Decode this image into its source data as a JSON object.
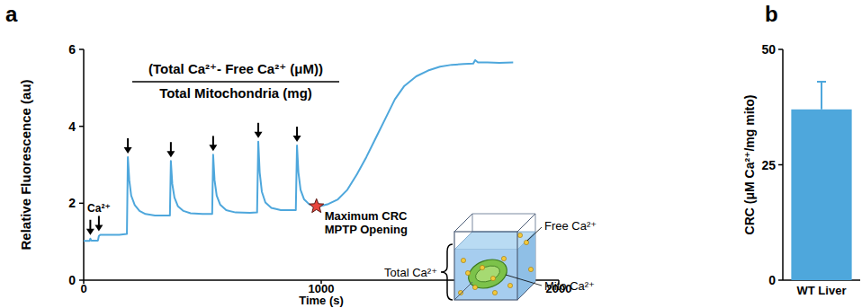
{
  "chart_data": [
    {
      "type": "line",
      "title": "a",
      "x": [
        0,
        25,
        28,
        32,
        60,
        64,
        70,
        100,
        150,
        182,
        186,
        192,
        200,
        215,
        235,
        260,
        300,
        363,
        367,
        373,
        382,
        397,
        420,
        450,
        500,
        541,
        545,
        551,
        560,
        575,
        600,
        640,
        700,
        730,
        735,
        741,
        750,
        765,
        790,
        830,
        893,
        898,
        904,
        913,
        928,
        950,
        980,
        1000,
        1030,
        1070,
        1110,
        1150,
        1190,
        1230,
        1270,
        1310,
        1350,
        1400,
        1450,
        1500,
        1550,
        1600,
        1640,
        1648,
        1660,
        1700,
        1750,
        1808
      ],
      "values": [
        1.02,
        1.02,
        1.08,
        1.03,
        1.03,
        1.15,
        1.18,
        1.18,
        1.18,
        1.2,
        3.2,
        2.6,
        2.2,
        1.95,
        1.8,
        1.72,
        1.68,
        1.68,
        3.1,
        2.5,
        2.15,
        1.92,
        1.8,
        1.74,
        1.72,
        1.72,
        3.26,
        2.6,
        2.2,
        1.96,
        1.82,
        1.76,
        1.75,
        1.76,
        3.6,
        2.8,
        2.3,
        2.02,
        1.88,
        1.82,
        1.82,
        3.5,
        2.8,
        2.35,
        2.1,
        1.97,
        1.92,
        1.93,
        1.98,
        2.1,
        2.35,
        2.75,
        3.2,
        3.7,
        4.2,
        4.7,
        5.05,
        5.3,
        5.45,
        5.55,
        5.6,
        5.62,
        5.63,
        5.72,
        5.66,
        5.66,
        5.65,
        5.66
      ],
      "color": "#4ea7dc",
      "xlim": [
        0,
        2000
      ],
      "xticks": [
        0,
        1000,
        2000
      ],
      "ylim": [
        0,
        6
      ],
      "yticks": [
        0,
        2,
        4,
        6
      ],
      "x_label": "Time (s)",
      "y_label": "Relative Fluorescence (au)",
      "formula": {
        "numerator": "(Total Ca²⁺- Free Ca²⁺ (μM))",
        "denominator": "Total Mitochondria (mg)"
      },
      "additions": {
        "label": "Ca²⁺",
        "x": [
          28,
          64,
          186,
          367,
          545,
          735,
          898
        ]
      },
      "star": {
        "x": 980,
        "y": 1.92,
        "labels": [
          "Maximum CRC",
          "MPTP Opening"
        ]
      },
      "inset": {
        "total": "Total Ca²⁺",
        "free": "Free Ca²⁺",
        "mito": "Mito Ca²⁺"
      }
    },
    {
      "type": "bar",
      "title": "b",
      "categories": [
        "WT Liver"
      ],
      "values": [
        37
      ],
      "errors": [
        6
      ],
      "color": "#4ea7dc",
      "ylim": [
        0,
        50
      ],
      "yticks": [
        0,
        25,
        50
      ],
      "y_label": "CRC (μM Ca²⁺/mg mito)"
    }
  ]
}
